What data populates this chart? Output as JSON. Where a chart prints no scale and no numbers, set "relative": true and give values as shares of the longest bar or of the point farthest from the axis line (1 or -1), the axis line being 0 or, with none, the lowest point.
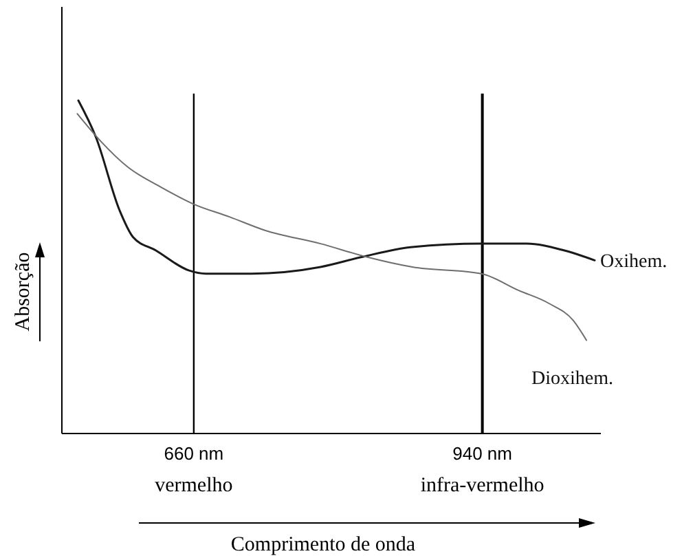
{
  "chart_data": {
    "type": "line",
    "relative": true,
    "xlabel": "Comprimento de onda",
    "ylabel": "Absorção",
    "xlim": [
      532,
      1055
    ],
    "xticks": [
      {
        "value": 660,
        "label": "660 nm"
      },
      {
        "value": 940,
        "label": "940 nm"
      }
    ],
    "ref_lines": [
      {
        "axis": "x",
        "value": 660,
        "label": "vermelho"
      },
      {
        "axis": "x",
        "value": 940,
        "label": "infra-vermelho"
      }
    ],
    "legend": false,
    "grid": false,
    "marker": "none",
    "line_style": "solid",
    "series": [
      {
        "name": "Oxihem.",
        "color": "#1a1a1a",
        "x": [
          548,
          565,
          588,
          601,
          623,
          655,
          672,
          716,
          783,
          823,
          872,
          939,
          983,
          1019,
          1049
        ],
        "values": [
          1.0,
          0.89,
          0.67,
          0.59,
          0.55,
          0.49,
          0.48,
          0.48,
          0.5,
          0.53,
          0.56,
          0.57,
          0.57,
          0.55,
          0.52
        ]
      },
      {
        "name": "Dioxihem.",
        "color": "#6e6e6e",
        "x": [
          547,
          569,
          596,
          628,
          659,
          695,
          729,
          783,
          828,
          872,
          939,
          975,
          1005,
          1028,
          1041
        ],
        "values": [
          0.96,
          0.88,
          0.8,
          0.74,
          0.69,
          0.65,
          0.61,
          0.57,
          0.53,
          0.5,
          0.48,
          0.43,
          0.39,
          0.34,
          0.28
        ]
      }
    ]
  }
}
